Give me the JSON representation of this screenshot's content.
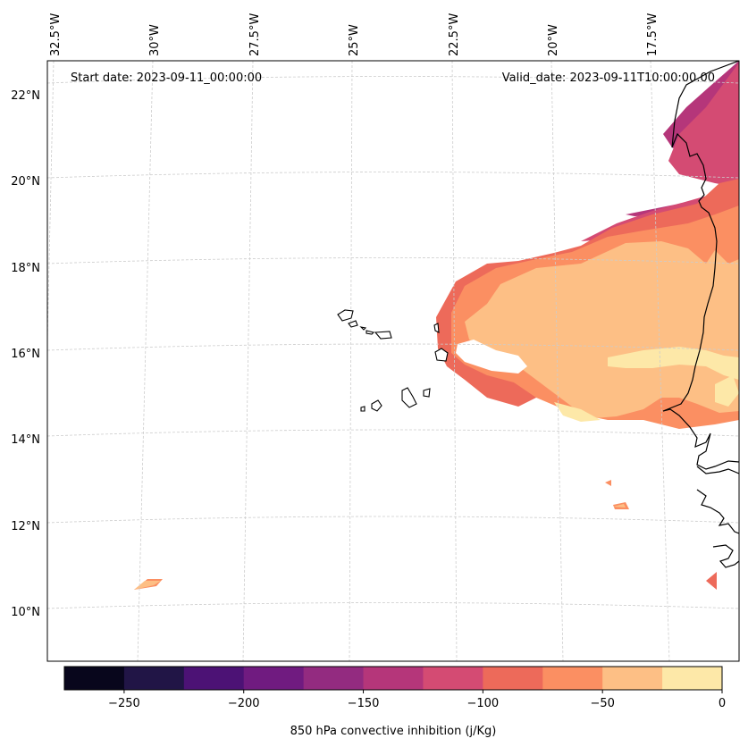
{
  "header": {
    "start_date": "Start date: 2023-09-11_00:00:00",
    "valid_date": "Valid_date: 2023-09-11T10:00:00.00"
  },
  "map": {
    "lon_labels": [
      "32.5°W",
      "30°W",
      "27.5°W",
      "25°W",
      "22.5°W",
      "20°W",
      "17.5°W"
    ],
    "lat_labels": [
      "22°N",
      "20°N",
      "18°N",
      "16°N",
      "14°N",
      "12°N",
      "10°N"
    ],
    "fill_colors": {
      "bin_m150_m125": "#b5367a",
      "bin_m125_m100": "#d44b73",
      "bin_m100_m75": "#ed6a5a",
      "bin_m75_m50": "#fb8f62",
      "bin_m50_m25": "#fdbf85",
      "bin_m25_0": "#fde8a8"
    }
  },
  "colorbar": {
    "label": "850 hPa convective inhibition (j/Kg)",
    "ticks": [
      "−250",
      "−200",
      "−150",
      "−100",
      "−50",
      "0"
    ],
    "colors": [
      "#08061c",
      "#211546",
      "#4c1275",
      "#701b80",
      "#932b80",
      "#b5367a",
      "#d44b73",
      "#ed6a5a",
      "#fb8f62",
      "#fdbf85",
      "#fde8a8"
    ]
  }
}
